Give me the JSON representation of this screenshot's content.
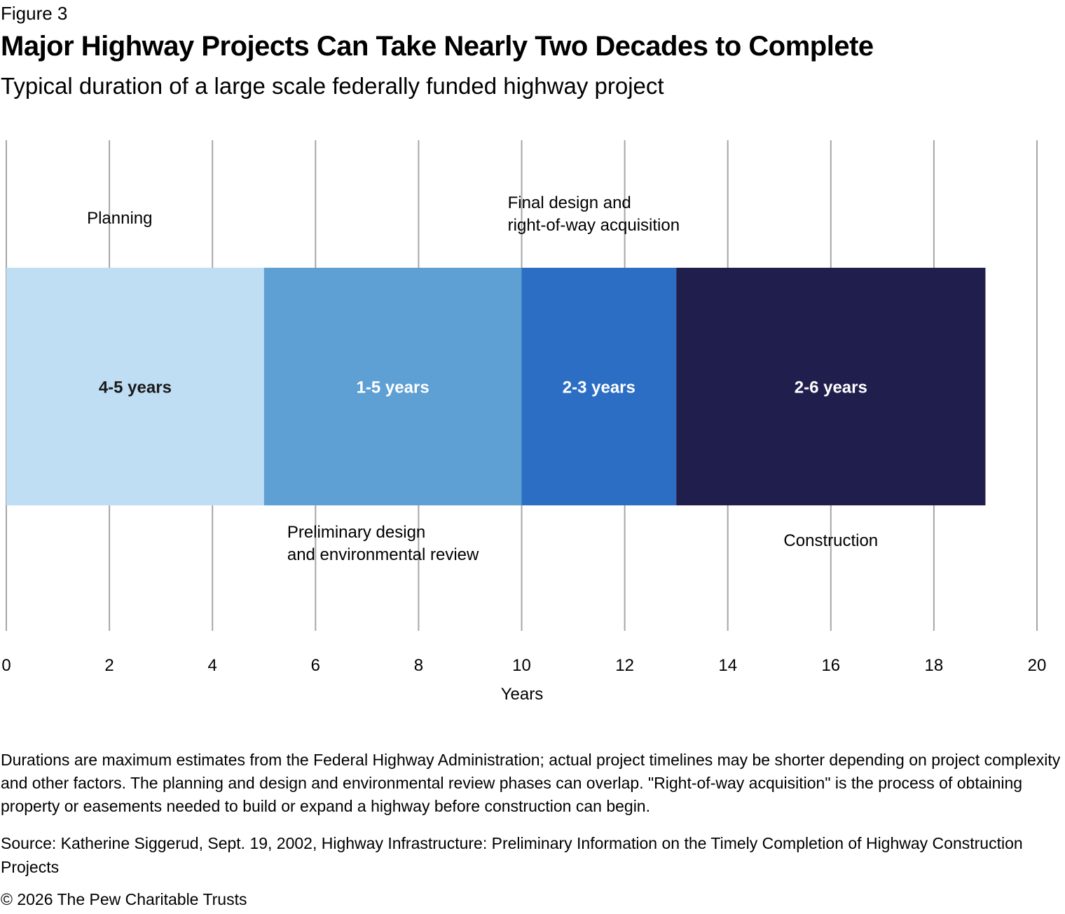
{
  "figure_label": "Figure 3",
  "chart_data": {
    "type": "bar",
    "orientation": "horizontal-stacked",
    "title": "Major Highway Projects Can Take Nearly Two Decades to Complete",
    "subtitle": "Typical duration of a large scale federally funded highway project",
    "xlabel": "Years",
    "xlim": [
      0,
      20
    ],
    "xticks": [
      0,
      2,
      4,
      6,
      8,
      10,
      12,
      14,
      16,
      18,
      20
    ],
    "grid": true,
    "segments": [
      {
        "phase_label": [
          "Planning"
        ],
        "label_side": "above",
        "start": 0,
        "end": 5,
        "value_label": "4-5 years",
        "color": "#bfdef4",
        "text_color": "#1a1a1a"
      },
      {
        "phase_label": [
          "Preliminary design",
          "and environmental review"
        ],
        "label_side": "below",
        "start": 5,
        "end": 10,
        "value_label": "1-5 years",
        "color": "#5e9fd4",
        "text_color": "#ffffff"
      },
      {
        "phase_label": [
          "Final design and",
          "right-of-way acquisition"
        ],
        "label_side": "above",
        "start": 10,
        "end": 13,
        "value_label": "2-3 years",
        "color": "#2c6ec4",
        "text_color": "#ffffff"
      },
      {
        "phase_label": [
          "Construction"
        ],
        "label_side": "below",
        "start": 13,
        "end": 19,
        "value_label": "2-6 years",
        "color": "#201e4c",
        "text_color": "#ffffff"
      }
    ]
  },
  "notes": "Durations are maximum estimates from the Federal Highway Administration; actual project timelines may be shorter depending on project complexity and other factors. The planning and design and environmental review phases can overlap. \"Right-of-way acquisition\" is the process of obtaining property or easements needed to build or expand a highway before construction can begin.",
  "source": "Source: Katherine Siggerud, Sept. 19, 2002, Highway Infrastructure: Preliminary Information on the Timely Completion of Highway Construction Projects",
  "copyright": "© 2026 The Pew Charitable Trusts"
}
